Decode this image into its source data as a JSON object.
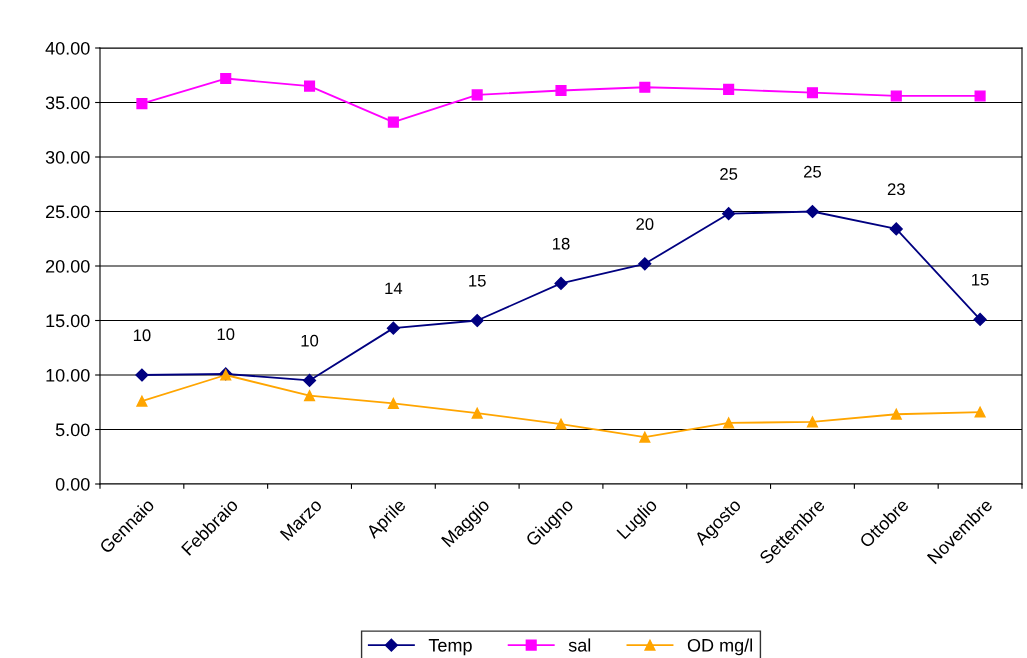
{
  "chart_data": {
    "type": "line",
    "categories": [
      "Gennaio",
      "Febbraio",
      "Marzo",
      "Aprile",
      "Maggio",
      "Giugno",
      "Luglio",
      "Agosto",
      "Settembre",
      "Ottobre",
      "Novembre"
    ],
    "series": [
      {
        "name": "Temp",
        "color": "#000080",
        "marker": "diamond",
        "values": [
          10.0,
          10.1,
          9.5,
          14.3,
          15.0,
          18.4,
          20.2,
          24.8,
          25.0,
          23.4,
          15.1
        ],
        "value_labels": [
          "10",
          "10",
          "10",
          "14",
          "15",
          "18",
          "20",
          "25",
          "25",
          "23",
          "15"
        ]
      },
      {
        "name": "sal",
        "color": "#ff00ff",
        "marker": "square",
        "values": [
          34.9,
          37.2,
          36.5,
          33.2,
          35.7,
          36.1,
          36.4,
          36.2,
          35.9,
          35.6,
          35.6
        ]
      },
      {
        "name": "OD mg/l",
        "color": "#ffa500",
        "marker": "triangle",
        "values": [
          7.6,
          10.0,
          8.1,
          7.4,
          6.5,
          5.5,
          4.3,
          5.6,
          5.7,
          6.4,
          6.6
        ]
      }
    ],
    "ylim": [
      0,
      40
    ],
    "yticks": [
      {
        "value": 0,
        "label": "0.00"
      },
      {
        "value": 5,
        "label": "5.00"
      },
      {
        "value": 10,
        "label": "10.00"
      },
      {
        "value": 15,
        "label": "15.00"
      },
      {
        "value": 20,
        "label": "20.00"
      },
      {
        "value": 25,
        "label": "25.00"
      },
      {
        "value": 30,
        "label": "30.00"
      },
      {
        "value": 35,
        "label": "35.00"
      },
      {
        "value": 40,
        "label": "40.00"
      }
    ],
    "grid": "y",
    "legend": "bottom",
    "line_style": "solid"
  }
}
